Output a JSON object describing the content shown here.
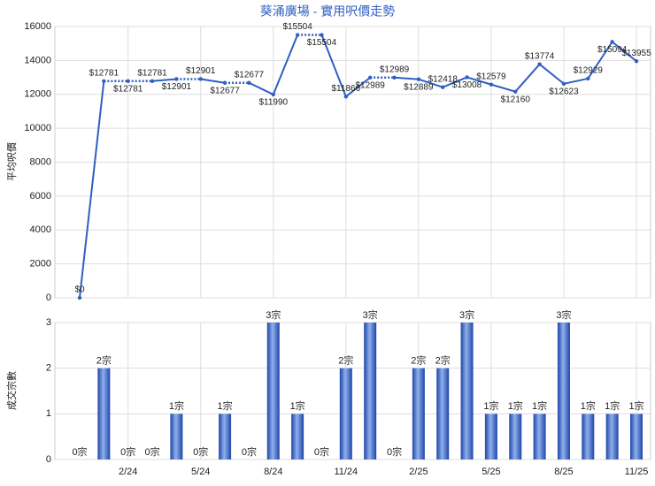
{
  "chart_data": [
    {
      "type": "line",
      "title": "葵涌廣場 - 實用呎價走勢",
      "ylabel": "平均呎價",
      "color": "#2f5fc4",
      "values": [
        0,
        12781,
        12781,
        12781,
        12901,
        12901,
        12677,
        12677,
        11990,
        15504,
        15504,
        11866,
        12989,
        12989,
        12889,
        12418,
        13008,
        12579,
        12160,
        13774,
        12623,
        12929,
        15094,
        13955
      ],
      "value_labels": [
        "$0",
        "$12781",
        "$12781",
        "$12781",
        "$12901",
        "$12901",
        "$12677",
        "$12677",
        "$11990",
        "$15504",
        "$15504",
        "$11866",
        "$12989",
        "$12989",
        "$12889",
        "$12418",
        "$13008",
        "$12579",
        "$12160",
        "$13774",
        "$12623",
        "$12929",
        "$15094",
        "$13955"
      ],
      "ylim": [
        0,
        16000
      ],
      "yticks": [
        0,
        2000,
        4000,
        6000,
        8000,
        10000,
        12000,
        14000,
        16000
      ],
      "grid": true
    },
    {
      "type": "bar",
      "ylabel": "成交宗數",
      "color": "#3a66c8",
      "categories": [
        null,
        null,
        "2/24",
        null,
        null,
        "5/24",
        null,
        null,
        "8/24",
        null,
        null,
        "11/24",
        null,
        null,
        "2/25",
        null,
        null,
        "5/25",
        null,
        null,
        "8/25",
        null,
        null,
        "11/25"
      ],
      "values": [
        0,
        2,
        0,
        0,
        1,
        0,
        1,
        0,
        3,
        1,
        0,
        2,
        3,
        0,
        2,
        2,
        3,
        1,
        1,
        1,
        3,
        1,
        1,
        1
      ],
      "value_labels": [
        "0宗",
        "2宗",
        "0宗",
        "0宗",
        "1宗",
        "0宗",
        "1宗",
        "0宗",
        "3宗",
        "1宗",
        "0宗",
        "2宗",
        "3宗",
        "0宗",
        "2宗",
        "2宗",
        "3宗",
        "1宗",
        "1宗",
        "1宗",
        "3宗",
        "1宗",
        "1宗",
        "1宗"
      ],
      "ylim": [
        0,
        3
      ],
      "yticks": [
        0,
        1,
        2,
        3
      ],
      "grid": true
    }
  ]
}
